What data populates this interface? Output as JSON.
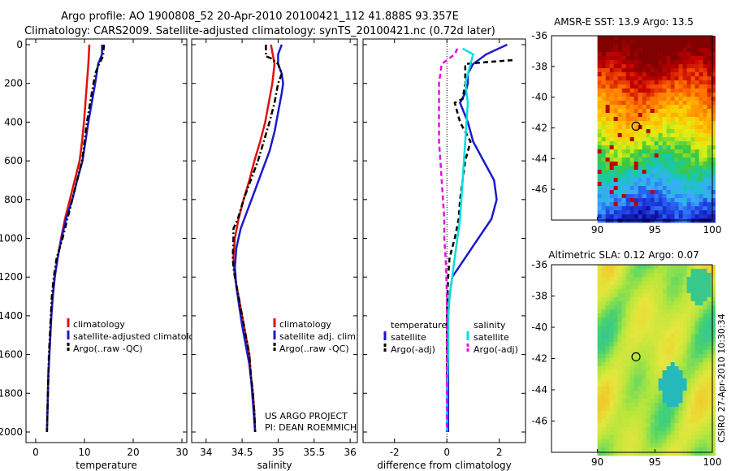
{
  "title": {
    "line1": "Argo profile: AO 1900808_52 20-Apr-2010 20100421_112 41.888S 93.357E",
    "line2": "Climatology: CARS2009. Satellite-adjusted climatology: synTS_20100421.nc (0.72d later)"
  },
  "credits": {
    "project": "US ARGO PROJECT",
    "pi": "PI: DEAN ROEMMICH",
    "vertical": "CSIRO 27-Apr-2010 10:30:34"
  },
  "colors": {
    "climatology": "#e01010",
    "satellite": "#1a1acc",
    "argo": "#000000",
    "salinity_satellite": "#00e0e0",
    "salinity_argo": "#e010e0"
  },
  "chart_data": [
    {
      "type": "line",
      "id": "temperature",
      "xlabel": "temperature",
      "ylabel": "",
      "xlim": [
        -2,
        31
      ],
      "ylim": [
        2050,
        0
      ],
      "xticks": [
        0,
        10,
        20,
        30
      ],
      "yticks": [
        0,
        200,
        400,
        600,
        800,
        1000,
        1200,
        1400,
        1600,
        1800,
        2000
      ],
      "legend": {
        "placement": "bottom-right",
        "entries": [
          "climatology",
          "satellite-adjusted climatology",
          "Argo(..raw -QC)"
        ]
      },
      "series": [
        {
          "name": "climatology",
          "color": "#e01010",
          "dash": "solid",
          "points": [
            [
              11.0,
              0
            ],
            [
              10.8,
              100
            ],
            [
              10.5,
              200
            ],
            [
              10.2,
              300
            ],
            [
              9.9,
              400
            ],
            [
              9.5,
              500
            ],
            [
              9.0,
              600
            ],
            [
              8.0,
              700
            ],
            [
              7.0,
              800
            ],
            [
              6.0,
              900
            ],
            [
              5.2,
              1000
            ],
            [
              4.5,
              1100
            ],
            [
              3.9,
              1200
            ],
            [
              3.5,
              1300
            ],
            [
              3.2,
              1400
            ],
            [
              3.0,
              1500
            ],
            [
              2.8,
              1600
            ],
            [
              2.6,
              1700
            ],
            [
              2.5,
              1800
            ],
            [
              2.4,
              1900
            ],
            [
              2.3,
              2000
            ]
          ]
        },
        {
          "name": "satellite-adjusted climatology",
          "color": "#1a1acc",
          "dash": "solid",
          "points": [
            [
              13.6,
              0
            ],
            [
              13.6,
              50
            ],
            [
              12.8,
              100
            ],
            [
              12.5,
              150
            ],
            [
              12.2,
              200
            ],
            [
              11.5,
              300
            ],
            [
              10.8,
              400
            ],
            [
              10.2,
              500
            ],
            [
              9.6,
              600
            ],
            [
              8.5,
              700
            ],
            [
              7.5,
              800
            ],
            [
              6.2,
              900
            ],
            [
              5.3,
              1000
            ],
            [
              4.5,
              1100
            ],
            [
              3.9,
              1200
            ],
            [
              3.5,
              1300
            ],
            [
              3.2,
              1400
            ],
            [
              3.0,
              1500
            ],
            [
              2.8,
              1600
            ],
            [
              2.6,
              1700
            ],
            [
              2.5,
              1800
            ],
            [
              2.4,
              1900
            ],
            [
              2.3,
              2000
            ]
          ]
        },
        {
          "name": "Argo(..raw -QC)",
          "color": "#000000",
          "dash": "dashdot",
          "points": [
            [
              14.0,
              0
            ],
            [
              13.8,
              60
            ],
            [
              13.0,
              100
            ],
            [
              12.2,
              150
            ],
            [
              11.5,
              250
            ],
            [
              10.5,
              400
            ],
            [
              10.0,
              500
            ],
            [
              9.5,
              600
            ],
            [
              8.5,
              700
            ],
            [
              7.5,
              800
            ],
            [
              6.5,
              900
            ],
            [
              5.5,
              1000
            ],
            [
              4.3,
              1100
            ],
            [
              3.7,
              1200
            ],
            [
              3.3,
              1300
            ],
            [
              3.1,
              1400
            ],
            [
              2.9,
              1500
            ],
            [
              2.7,
              1600
            ],
            [
              2.6,
              1700
            ],
            [
              2.5,
              1800
            ],
            [
              2.4,
              1900
            ],
            [
              2.3,
              2000
            ]
          ]
        }
      ]
    },
    {
      "type": "line",
      "id": "salinity",
      "xlabel": "salinity",
      "ylabel": "",
      "xlim": [
        33.8,
        36.1
      ],
      "ylim": [
        2050,
        0
      ],
      "xticks": [
        34,
        34.5,
        35,
        35.5,
        36
      ],
      "legend": {
        "placement": "bottom-right",
        "entries": [
          "climatology",
          "satellite adj. clim.",
          "Argo(..raw -QC)"
        ]
      },
      "series": [
        {
          "name": "climatology",
          "color": "#e01010",
          "dash": "solid",
          "points": [
            [
              34.9,
              0
            ],
            [
              34.95,
              100
            ],
            [
              34.92,
              200
            ],
            [
              34.87,
              300
            ],
            [
              34.82,
              400
            ],
            [
              34.75,
              500
            ],
            [
              34.67,
              600
            ],
            [
              34.6,
              700
            ],
            [
              34.52,
              800
            ],
            [
              34.45,
              900
            ],
            [
              34.4,
              1000
            ],
            [
              34.38,
              1100
            ],
            [
              34.4,
              1200
            ],
            [
              34.45,
              1300
            ],
            [
              34.5,
              1400
            ],
            [
              34.55,
              1500
            ],
            [
              34.6,
              1600
            ],
            [
              34.62,
              1700
            ],
            [
              34.65,
              1800
            ],
            [
              34.67,
              1900
            ],
            [
              34.68,
              2000
            ]
          ]
        },
        {
          "name": "satellite adj. clim.",
          "color": "#1a1acc",
          "dash": "solid",
          "points": [
            [
              35.05,
              0
            ],
            [
              35.0,
              50
            ],
            [
              35.0,
              100
            ],
            [
              35.05,
              150
            ],
            [
              35.07,
              200
            ],
            [
              35.05,
              250
            ],
            [
              35.0,
              350
            ],
            [
              34.95,
              450
            ],
            [
              34.88,
              550
            ],
            [
              34.78,
              650
            ],
            [
              34.68,
              750
            ],
            [
              34.58,
              850
            ],
            [
              34.48,
              950
            ],
            [
              34.42,
              1050
            ],
            [
              34.4,
              1150
            ],
            [
              34.42,
              1250
            ],
            [
              34.46,
              1350
            ],
            [
              34.5,
              1450
            ],
            [
              34.55,
              1550
            ],
            [
              34.6,
              1650
            ],
            [
              34.63,
              1750
            ],
            [
              34.65,
              1850
            ],
            [
              34.67,
              1950
            ],
            [
              34.68,
              2000
            ]
          ]
        },
        {
          "name": "Argo(..raw -QC)",
          "color": "#000000",
          "dash": "dashdot",
          "points": [
            [
              34.83,
              0
            ],
            [
              34.83,
              60
            ],
            [
              34.9,
              70
            ],
            [
              35.0,
              100
            ],
            [
              35.05,
              150
            ],
            [
              35.0,
              200
            ],
            [
              34.95,
              300
            ],
            [
              34.88,
              400
            ],
            [
              34.8,
              500
            ],
            [
              34.72,
              600
            ],
            [
              34.62,
              700
            ],
            [
              34.52,
              800
            ],
            [
              34.44,
              900
            ],
            [
              34.38,
              950
            ],
            [
              34.38,
              1000
            ],
            [
              34.37,
              1100
            ],
            [
              34.38,
              1150
            ],
            [
              34.4,
              1200
            ],
            [
              34.45,
              1300
            ],
            [
              34.5,
              1400
            ],
            [
              34.55,
              1500
            ],
            [
              34.6,
              1600
            ],
            [
              34.62,
              1700
            ],
            [
              34.65,
              1800
            ],
            [
              34.67,
              1900
            ],
            [
              34.68,
              2000
            ]
          ]
        }
      ]
    },
    {
      "type": "line",
      "id": "difference",
      "xlabel": "difference from climatology",
      "ylabel": "",
      "xlim": [
        -3.2,
        3.0
      ],
      "ylim": [
        2050,
        0
      ],
      "xticks": [
        -2,
        0,
        2
      ],
      "legend": {
        "placement": "bottom",
        "headers": [
          "temperature",
          "salinity"
        ],
        "entries": [
          "satellite",
          "Argo(-adj)",
          "satellite",
          "Argo(-adj)"
        ]
      },
      "series": [
        {
          "name": "temperature satellite",
          "color": "#1a1acc",
          "dash": "solid",
          "points": [
            [
              2.3,
              0
            ],
            [
              1.5,
              50
            ],
            [
              1.0,
              100
            ],
            [
              0.8,
              150
            ],
            [
              0.8,
              200
            ],
            [
              0.7,
              250
            ],
            [
              0.5,
              300
            ],
            [
              0.8,
              400
            ],
            [
              1.0,
              500
            ],
            [
              1.4,
              600
            ],
            [
              1.8,
              700
            ],
            [
              1.9,
              800
            ],
            [
              1.7,
              900
            ],
            [
              1.2,
              1000
            ],
            [
              0.7,
              1100
            ],
            [
              0.2,
              1200
            ],
            [
              0.1,
              1300
            ],
            [
              0.05,
              1400
            ],
            [
              0.05,
              1600
            ],
            [
              0.05,
              1800
            ],
            [
              0.05,
              2000
            ]
          ]
        },
        {
          "name": "temperature Argo(-adj)",
          "color": "#000000",
          "dash": "dash",
          "points": [
            [
              2.5,
              80
            ],
            [
              1.5,
              90
            ],
            [
              0.7,
              100
            ],
            [
              0.7,
              200
            ],
            [
              0.6,
              280
            ],
            [
              0.3,
              300
            ],
            [
              0.5,
              400
            ],
            [
              0.9,
              500
            ],
            [
              0.7,
              600
            ],
            [
              0.6,
              700
            ],
            [
              0.5,
              800
            ],
            [
              0.45,
              900
            ],
            [
              0.3,
              1000
            ],
            [
              0.1,
              1100
            ],
            [
              0.05,
              1200
            ],
            [
              0.02,
              1300
            ],
            [
              0.0,
              1400
            ],
            [
              0.0,
              1600
            ],
            [
              0.0,
              1800
            ],
            [
              0.0,
              2000
            ]
          ]
        },
        {
          "name": "salinity satellite",
          "color": "#00e0e0",
          "dash": "solid",
          "points": [
            [
              0.6,
              20
            ],
            [
              1.0,
              50
            ],
            [
              0.9,
              100
            ],
            [
              0.7,
              200
            ],
            [
              0.8,
              300
            ],
            [
              0.75,
              400
            ],
            [
              0.7,
              500
            ],
            [
              0.65,
              600
            ],
            [
              0.6,
              700
            ],
            [
              0.55,
              800
            ],
            [
              0.5,
              900
            ],
            [
              0.4,
              1000
            ],
            [
              0.3,
              1100
            ],
            [
              0.2,
              1200
            ],
            [
              0.1,
              1300
            ],
            [
              0.05,
              1400
            ],
            [
              0.05,
              1600
            ],
            [
              0.0,
              1800
            ],
            [
              0.0,
              2000
            ]
          ]
        },
        {
          "name": "salinity Argo(-adj)",
          "color": "#e010e0",
          "dash": "dash",
          "points": [
            [
              0.4,
              20
            ],
            [
              0.3,
              50
            ],
            [
              -0.2,
              100
            ],
            [
              -0.3,
              200
            ],
            [
              -0.3,
              300
            ],
            [
              -0.3,
              400
            ],
            [
              -0.3,
              500
            ],
            [
              -0.25,
              600
            ],
            [
              -0.2,
              700
            ],
            [
              -0.15,
              800
            ],
            [
              -0.1,
              900
            ],
            [
              -0.1,
              1000
            ],
            [
              -0.05,
              1100
            ],
            [
              -0.02,
              1200
            ],
            [
              0.0,
              1300
            ],
            [
              0.0,
              1400
            ],
            [
              0.0,
              1600
            ],
            [
              0.0,
              1800
            ],
            [
              0.0,
              2000
            ]
          ]
        }
      ]
    },
    {
      "type": "heatmap",
      "id": "sst-map",
      "title": "AMSR-E SST: 13.9  Argo: 13.5",
      "xlim": [
        86,
        100
      ],
      "ylim": [
        -48,
        -36
      ],
      "xticks": [
        90,
        95,
        100
      ],
      "yticks": [
        -36,
        -38,
        -40,
        -42,
        -44,
        -46
      ],
      "marker": {
        "lon": 93.357,
        "lat": -41.888
      },
      "data_coverage_lon": [
        90,
        100
      ],
      "color_bands_top_to_bottom": [
        "dark red",
        "red",
        "orange",
        "yellow",
        "green",
        "cyan",
        "light blue",
        "blue",
        "dark blue"
      ]
    },
    {
      "type": "heatmap",
      "id": "sla-map",
      "title": "Altimetric SLA: 0.12  Argo: 0.07",
      "xlim": [
        86,
        100
      ],
      "ylim": [
        -48,
        -36
      ],
      "xticks": [
        90,
        95,
        100
      ],
      "yticks": [
        -36,
        -38,
        -40,
        -42,
        -44,
        -46
      ],
      "marker": {
        "lon": 93.357,
        "lat": -41.888
      },
      "data_coverage_lon": [
        90,
        100
      ]
    }
  ]
}
